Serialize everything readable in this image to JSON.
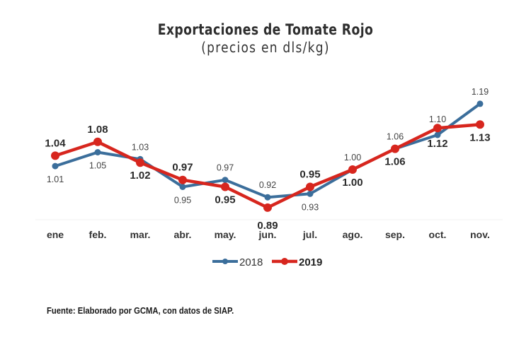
{
  "chart_data": {
    "type": "line",
    "title": "Exportaciones de Tomate Rojo",
    "subtitle": "(precios en dls/kg)",
    "xlabel": "",
    "ylabel": "",
    "categories": [
      "ene",
      "feb.",
      "mar.",
      "abr.",
      "may.",
      "jun.",
      "jul.",
      "ago.",
      "sep.",
      "oct.",
      "nov."
    ],
    "series": [
      {
        "name": "2018",
        "color": "#3b6e9b",
        "values": [
          1.01,
          1.05,
          1.03,
          0.95,
          0.97,
          0.92,
          0.93,
          1.0,
          1.06,
          1.1,
          1.19
        ],
        "labels": [
          "1.01",
          "1.05",
          "1.03",
          "0.95",
          "0.97",
          "0.92",
          "0.93",
          "1.00",
          "1.06",
          "1.10",
          "1.19"
        ]
      },
      {
        "name": "2019",
        "color": "#d7261e",
        "values": [
          1.04,
          1.08,
          1.02,
          0.97,
          0.95,
          0.89,
          0.95,
          1.0,
          1.06,
          1.12,
          1.13
        ],
        "labels": [
          "1.04",
          "1.08",
          "1.02",
          "0.97",
          "0.95",
          "0.89",
          "0.95",
          "1.00",
          "1.06",
          "1.12",
          "1.13"
        ]
      }
    ],
    "ylim": [
      0.85,
      1.22
    ],
    "grid": false,
    "legend": "bottom-center"
  },
  "source": "Fuente: Elaborado por GCMA, con datos de SIAP."
}
